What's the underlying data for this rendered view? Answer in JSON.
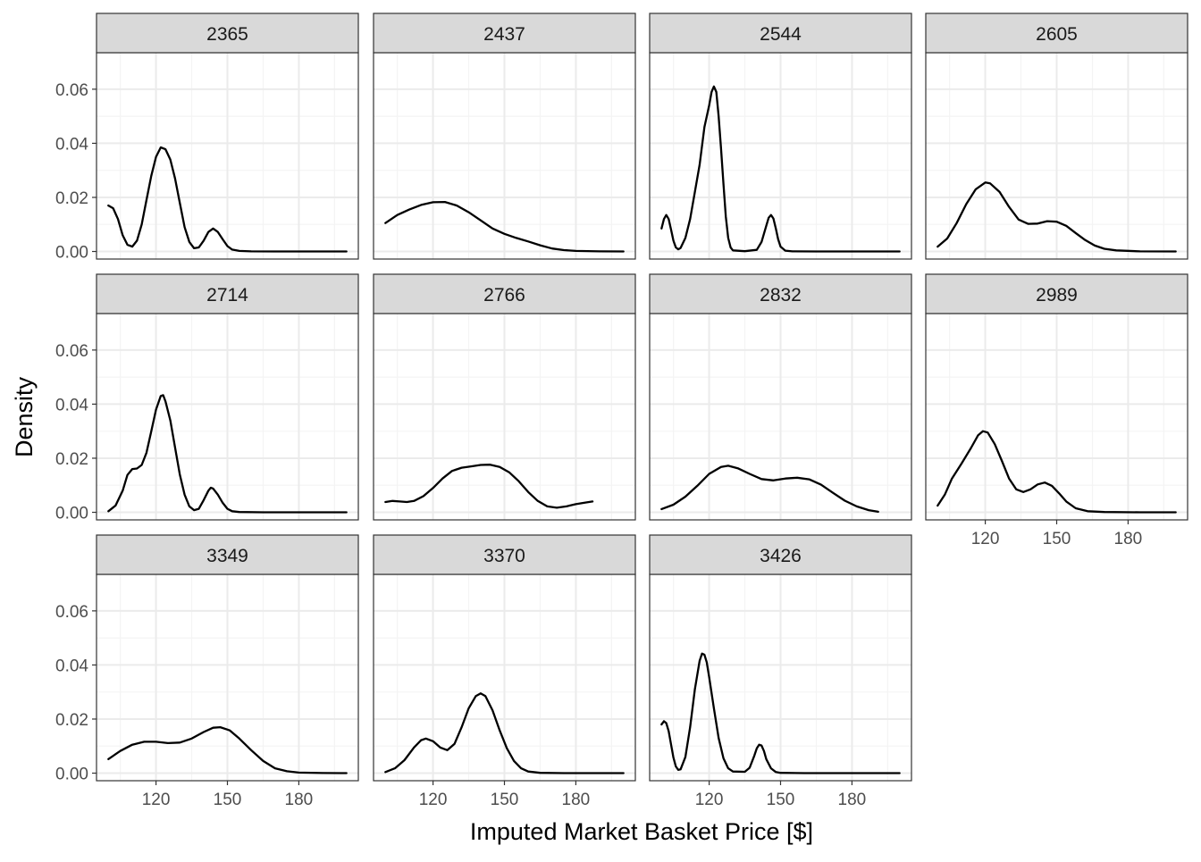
{
  "chart_data": {
    "type": "line",
    "chart_kind": "faceted density plot",
    "xlabel": "Imputed Market Basket Price [$]",
    "ylabel": "Density",
    "xlim": [
      95,
      205
    ],
    "ylim": [
      -0.0028,
      0.0735
    ],
    "x_ticks": [
      120,
      150,
      180
    ],
    "x_tick_labels": [
      "120",
      "150",
      "180"
    ],
    "x_minor_gridlines": [
      105,
      135,
      165,
      195
    ],
    "y_ticks": [
      0.0,
      0.02,
      0.04,
      0.06
    ],
    "y_tick_labels": [
      "0.00",
      "0.02",
      "0.04",
      "0.06"
    ],
    "grid": true,
    "facet_layout": {
      "columns": 4,
      "rows": 3
    },
    "line_color": "#000000",
    "strip_fill": "#d9d9d9",
    "panels": [
      {
        "label": "2365",
        "points": [
          [
            100,
            0.017
          ],
          [
            102,
            0.016
          ],
          [
            104,
            0.012
          ],
          [
            106,
            0.006
          ],
          [
            108,
            0.0025
          ],
          [
            110,
            0.0018
          ],
          [
            112,
            0.004
          ],
          [
            114,
            0.01
          ],
          [
            116,
            0.019
          ],
          [
            118,
            0.028
          ],
          [
            120,
            0.035
          ],
          [
            122,
            0.0385
          ],
          [
            124,
            0.0378
          ],
          [
            126,
            0.034
          ],
          [
            128,
            0.027
          ],
          [
            130,
            0.018
          ],
          [
            132,
            0.009
          ],
          [
            134,
            0.0035
          ],
          [
            136,
            0.0012
          ],
          [
            138,
            0.0015
          ],
          [
            140,
            0.004
          ],
          [
            142,
            0.0072
          ],
          [
            144,
            0.0085
          ],
          [
            146,
            0.0072
          ],
          [
            148,
            0.0045
          ],
          [
            150,
            0.002
          ],
          [
            152,
            0.0007
          ],
          [
            155,
            0.0002
          ],
          [
            160,
            5e-05
          ],
          [
            170,
            0
          ],
          [
            185,
            0
          ],
          [
            200,
            0
          ]
        ]
      },
      {
        "label": "2437",
        "points": [
          [
            100,
            0.0105
          ],
          [
            105,
            0.0135
          ],
          [
            110,
            0.0155
          ],
          [
            115,
            0.0172
          ],
          [
            120,
            0.0182
          ],
          [
            125,
            0.0183
          ],
          [
            130,
            0.017
          ],
          [
            135,
            0.0145
          ],
          [
            140,
            0.0115
          ],
          [
            145,
            0.0085
          ],
          [
            150,
            0.0065
          ],
          [
            155,
            0.005
          ],
          [
            160,
            0.0037
          ],
          [
            165,
            0.0023
          ],
          [
            170,
            0.0011
          ],
          [
            175,
            0.0005
          ],
          [
            180,
            0.0002
          ],
          [
            190,
            5e-05
          ],
          [
            200,
            0
          ]
        ]
      },
      {
        "label": "2544",
        "points": [
          [
            100,
            0.0085
          ],
          [
            101,
            0.012
          ],
          [
            102,
            0.0135
          ],
          [
            103,
            0.012
          ],
          [
            104,
            0.008
          ],
          [
            105,
            0.004
          ],
          [
            106,
            0.0015
          ],
          [
            107,
            0.0008
          ],
          [
            108,
            0.0013
          ],
          [
            110,
            0.005
          ],
          [
            112,
            0.012
          ],
          [
            114,
            0.022
          ],
          [
            116,
            0.032
          ],
          [
            118,
            0.046
          ],
          [
            120,
            0.054
          ],
          [
            121,
            0.059
          ],
          [
            122,
            0.061
          ],
          [
            123,
            0.059
          ],
          [
            124,
            0.05
          ],
          [
            125,
            0.038
          ],
          [
            126,
            0.025
          ],
          [
            127,
            0.013
          ],
          [
            128,
            0.005
          ],
          [
            129,
            0.0015
          ],
          [
            130,
            0.0004
          ],
          [
            135,
            0.0001
          ],
          [
            140,
            0.0006
          ],
          [
            142,
            0.0035
          ],
          [
            144,
            0.0095
          ],
          [
            145,
            0.0125
          ],
          [
            146,
            0.0135
          ],
          [
            147,
            0.0122
          ],
          [
            148,
            0.0085
          ],
          [
            149,
            0.0045
          ],
          [
            150,
            0.0018
          ],
          [
            152,
            0.0003
          ],
          [
            155,
            5e-05
          ],
          [
            165,
            0
          ],
          [
            180,
            0
          ],
          [
            200,
            0
          ]
        ]
      },
      {
        "label": "2605",
        "points": [
          [
            100,
            0.0018
          ],
          [
            104,
            0.0048
          ],
          [
            108,
            0.0105
          ],
          [
            112,
            0.0175
          ],
          [
            116,
            0.023
          ],
          [
            120,
            0.0255
          ],
          [
            122,
            0.0252
          ],
          [
            126,
            0.022
          ],
          [
            130,
            0.0165
          ],
          [
            134,
            0.0118
          ],
          [
            138,
            0.0102
          ],
          [
            142,
            0.0103
          ],
          [
            146,
            0.0112
          ],
          [
            150,
            0.011
          ],
          [
            154,
            0.0095
          ],
          [
            158,
            0.0068
          ],
          [
            162,
            0.0042
          ],
          [
            166,
            0.0022
          ],
          [
            170,
            0.001
          ],
          [
            175,
            0.0004
          ],
          [
            185,
            5e-05
          ],
          [
            200,
            0
          ]
        ]
      },
      {
        "label": "2714",
        "points": [
          [
            100,
            0.0004
          ],
          [
            103,
            0.0025
          ],
          [
            106,
            0.008
          ],
          [
            108,
            0.0138
          ],
          [
            110,
            0.016
          ],
          [
            112,
            0.0162
          ],
          [
            114,
            0.0175
          ],
          [
            116,
            0.022
          ],
          [
            118,
            0.03
          ],
          [
            120,
            0.038
          ],
          [
            122,
            0.043
          ],
          [
            123,
            0.0433
          ],
          [
            124,
            0.041
          ],
          [
            126,
            0.034
          ],
          [
            128,
            0.024
          ],
          [
            130,
            0.014
          ],
          [
            132,
            0.0065
          ],
          [
            134,
            0.0022
          ],
          [
            136,
            0.0008
          ],
          [
            138,
            0.0013
          ],
          [
            140,
            0.0045
          ],
          [
            142,
            0.008
          ],
          [
            143,
            0.0091
          ],
          [
            144,
            0.0088
          ],
          [
            146,
            0.0065
          ],
          [
            148,
            0.0035
          ],
          [
            150,
            0.0013
          ],
          [
            152,
            0.0004
          ],
          [
            155,
            0.0001
          ],
          [
            165,
            0
          ],
          [
            180,
            0
          ],
          [
            200,
            0
          ]
        ]
      },
      {
        "label": "2766",
        "points": [
          [
            100,
            0.0038
          ],
          [
            103,
            0.0042
          ],
          [
            106,
            0.004
          ],
          [
            109,
            0.0038
          ],
          [
            112,
            0.0042
          ],
          [
            116,
            0.006
          ],
          [
            120,
            0.009
          ],
          [
            124,
            0.0125
          ],
          [
            128,
            0.0153
          ],
          [
            132,
            0.0165
          ],
          [
            136,
            0.017
          ],
          [
            140,
            0.0175
          ],
          [
            144,
            0.0176
          ],
          [
            148,
            0.0168
          ],
          [
            152,
            0.0148
          ],
          [
            156,
            0.0115
          ],
          [
            160,
            0.0075
          ],
          [
            164,
            0.0042
          ],
          [
            168,
            0.0022
          ],
          [
            172,
            0.0017
          ],
          [
            176,
            0.0022
          ],
          [
            180,
            0.003
          ],
          [
            184,
            0.0036
          ],
          [
            187,
            0.004
          ]
        ]
      },
      {
        "label": "2832",
        "points": [
          [
            100,
            0.0012
          ],
          [
            105,
            0.0028
          ],
          [
            110,
            0.0058
          ],
          [
            115,
            0.0098
          ],
          [
            120,
            0.0142
          ],
          [
            125,
            0.0168
          ],
          [
            128,
            0.0172
          ],
          [
            132,
            0.0163
          ],
          [
            137,
            0.0142
          ],
          [
            142,
            0.0123
          ],
          [
            147,
            0.0118
          ],
          [
            152,
            0.0125
          ],
          [
            157,
            0.0128
          ],
          [
            162,
            0.0122
          ],
          [
            167,
            0.0102
          ],
          [
            172,
            0.0072
          ],
          [
            177,
            0.0043
          ],
          [
            182,
            0.0022
          ],
          [
            187,
            0.0008
          ],
          [
            191,
            0.0002
          ]
        ]
      },
      {
        "label": "2989",
        "points": [
          [
            100,
            0.0025
          ],
          [
            103,
            0.0065
          ],
          [
            106,
            0.0125
          ],
          [
            110,
            0.018
          ],
          [
            114,
            0.0238
          ],
          [
            117,
            0.0285
          ],
          [
            119,
            0.03
          ],
          [
            121,
            0.0295
          ],
          [
            124,
            0.0252
          ],
          [
            127,
            0.019
          ],
          [
            130,
            0.0125
          ],
          [
            133,
            0.0085
          ],
          [
            136,
            0.0075
          ],
          [
            139,
            0.0085
          ],
          [
            142,
            0.0103
          ],
          [
            145,
            0.011
          ],
          [
            148,
            0.0098
          ],
          [
            151,
            0.007
          ],
          [
            154,
            0.004
          ],
          [
            158,
            0.0015
          ],
          [
            163,
            0.0004
          ],
          [
            170,
            0.0001
          ],
          [
            185,
            0
          ],
          [
            200,
            0
          ]
        ]
      },
      {
        "label": "3349",
        "points": [
          [
            100,
            0.0052
          ],
          [
            105,
            0.0082
          ],
          [
            110,
            0.0105
          ],
          [
            115,
            0.0116
          ],
          [
            120,
            0.0116
          ],
          [
            125,
            0.0111
          ],
          [
            130,
            0.0113
          ],
          [
            135,
            0.0128
          ],
          [
            140,
            0.0152
          ],
          [
            144,
            0.0168
          ],
          [
            147,
            0.017
          ],
          [
            151,
            0.0158
          ],
          [
            155,
            0.0128
          ],
          [
            160,
            0.0085
          ],
          [
            165,
            0.0045
          ],
          [
            170,
            0.0018
          ],
          [
            175,
            0.0007
          ],
          [
            180,
            0.0002
          ],
          [
            190,
            5e-05
          ],
          [
            200,
            0
          ]
        ]
      },
      {
        "label": "3370",
        "points": [
          [
            100,
            0.0004
          ],
          [
            104,
            0.0018
          ],
          [
            108,
            0.0048
          ],
          [
            112,
            0.0095
          ],
          [
            115,
            0.0122
          ],
          [
            117,
            0.0128
          ],
          [
            120,
            0.0118
          ],
          [
            123,
            0.0095
          ],
          [
            126,
            0.0085
          ],
          [
            129,
            0.0108
          ],
          [
            132,
            0.017
          ],
          [
            135,
            0.024
          ],
          [
            138,
            0.0285
          ],
          [
            140,
            0.0295
          ],
          [
            142,
            0.0285
          ],
          [
            145,
            0.0232
          ],
          [
            148,
            0.0158
          ],
          [
            151,
            0.0092
          ],
          [
            154,
            0.0045
          ],
          [
            157,
            0.0018
          ],
          [
            160,
            0.0006
          ],
          [
            165,
            0.0001
          ],
          [
            175,
            0
          ],
          [
            190,
            0
          ],
          [
            200,
            0
          ]
        ]
      },
      {
        "label": "3426",
        "points": [
          [
            100,
            0.018
          ],
          [
            101,
            0.0192
          ],
          [
            102,
            0.0185
          ],
          [
            103,
            0.0155
          ],
          [
            104,
            0.0105
          ],
          [
            105,
            0.0058
          ],
          [
            106,
            0.0025
          ],
          [
            107,
            0.0012
          ],
          [
            108,
            0.0014
          ],
          [
            110,
            0.006
          ],
          [
            112,
            0.017
          ],
          [
            114,
            0.031
          ],
          [
            116,
            0.0415
          ],
          [
            117,
            0.0442
          ],
          [
            118,
            0.0438
          ],
          [
            119,
            0.041
          ],
          [
            120,
            0.0355
          ],
          [
            122,
            0.024
          ],
          [
            124,
            0.013
          ],
          [
            126,
            0.0055
          ],
          [
            128,
            0.0018
          ],
          [
            130,
            0.0006
          ],
          [
            135,
            0.0005
          ],
          [
            137,
            0.002
          ],
          [
            139,
            0.0065
          ],
          [
            140,
            0.0092
          ],
          [
            141,
            0.0105
          ],
          [
            142,
            0.0102
          ],
          [
            143,
            0.0082
          ],
          [
            144,
            0.0052
          ],
          [
            146,
            0.0018
          ],
          [
            148,
            0.0004
          ],
          [
            150,
            0.0001
          ],
          [
            160,
            0
          ],
          [
            180,
            0
          ],
          [
            200,
            0
          ]
        ]
      }
    ]
  }
}
